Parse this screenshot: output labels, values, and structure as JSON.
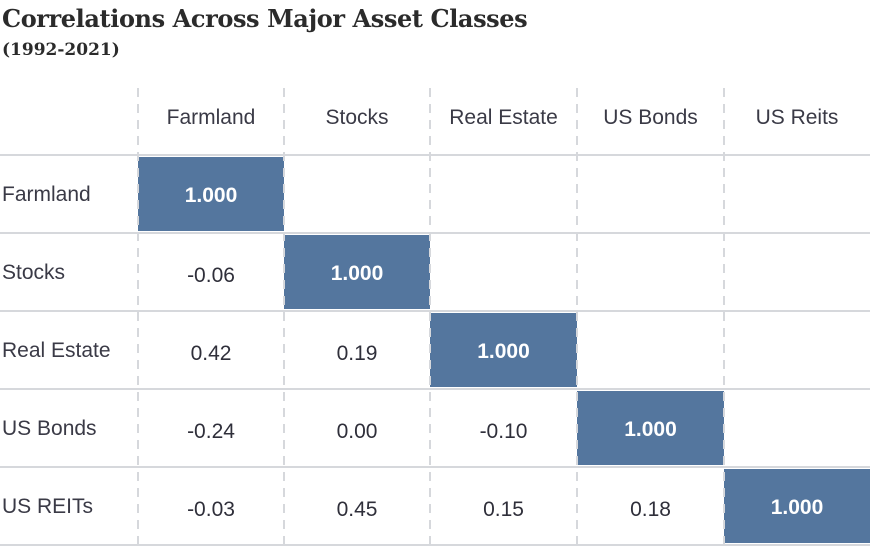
{
  "title": "Correlations Across Major Asset Classes",
  "subtitle": "(1992-2021)",
  "colors": {
    "diagonal_fill": "#54769e",
    "grid_dash": "#d6d8dc",
    "row_line": "#d6d8dc"
  },
  "chart_data": {
    "type": "table",
    "title": "Correlations Across Major Asset Classes",
    "subtitle": "(1992-2021)",
    "columns": [
      "Farmland",
      "Stocks",
      "Real Estate",
      "US Bonds",
      "US Reits"
    ],
    "rows": [
      "Farmland",
      "Stocks",
      "Real Estate",
      "US Bonds",
      "US REITs"
    ],
    "values": [
      [
        "1.000",
        "",
        "",
        "",
        ""
      ],
      [
        "-0.06",
        "1.000",
        "",
        "",
        ""
      ],
      [
        "0.42",
        "0.19",
        "1.000",
        "",
        ""
      ],
      [
        "-0.24",
        "0.00",
        "-0.10",
        "1.000",
        ""
      ],
      [
        "-0.03",
        "0.45",
        "0.15",
        "0.18",
        "1.000"
      ]
    ],
    "diagonal_highlight": true,
    "grid": "dashed-vertical"
  }
}
